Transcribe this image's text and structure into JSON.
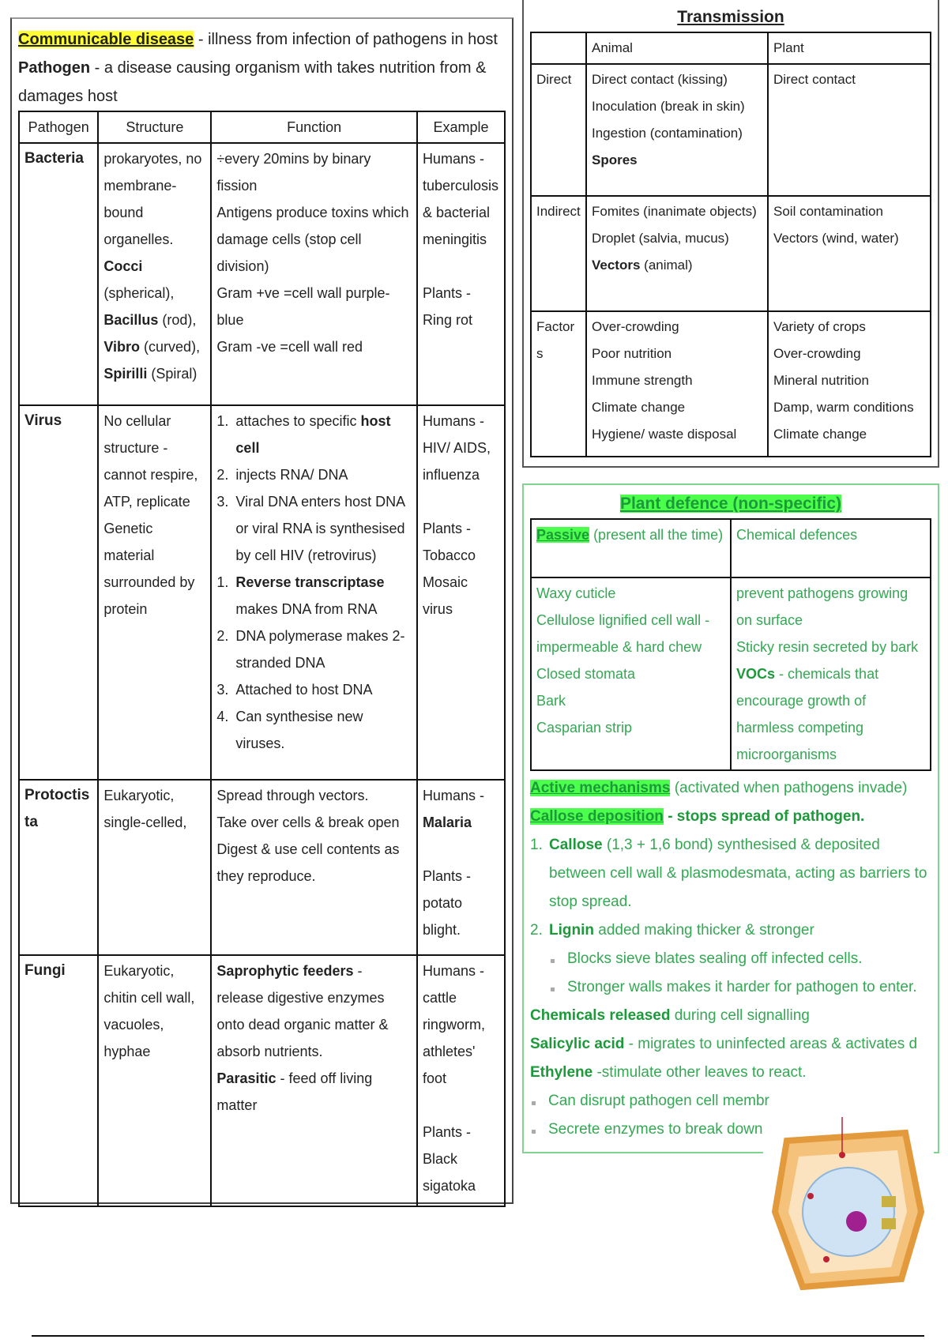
{
  "left": {
    "definitions": [
      [
        {
          "hl": "Communicable disease"
        },
        " - illness from infection of pathogens in host"
      ],
      [
        {
          "b": "Pathogen"
        },
        " - a disease causing organism with takes nutrition from & damages host"
      ]
    ],
    "table": {
      "header": [
        "Pathogen",
        "Structure",
        "Function",
        "Example"
      ],
      "rows": [
        {
          "name": "Bacteria",
          "structure": [
            "prokaryotes, no membrane-bound organelles.",
            [
              {
                "b": "Cocci"
              },
              " (spherical),"
            ],
            [
              {
                "b": "Bacillus"
              },
              " (rod),"
            ],
            [
              {
                "b": "Vibro"
              },
              " (curved),"
            ],
            [
              {
                "b": "Spirilli"
              },
              " (Spiral)"
            ]
          ],
          "function": [
            "÷every 20mins by binary fission",
            "Antigens produce toxins which damage cells (stop cell division)",
            "Gram +ve =cell wall purple-blue",
            "Gram -ve =cell wall red"
          ],
          "example": [
            "Humans - tuberculosis & bacterial meningitis",
            "Plants - Ring rot"
          ]
        },
        {
          "name": "Virus",
          "structure": [
            "No cellular structure - cannot respire, ATP, replicate",
            "Genetic material surrounded by protein"
          ],
          "function": [
            {
              "n": "1.",
              "t": [
                "attaches to specific ",
                {
                  "b": "host cell"
                }
              ]
            },
            {
              "n": "2.",
              "t": "injects RNA/ DNA"
            },
            {
              "n": "3.",
              "t": "Viral DNA enters host DNA or viral RNA is synthesised by cell HIV (retrovirus)"
            },
            {
              "n": "1.",
              "t": [
                {
                  "b": "Reverse transcriptase"
                },
                " makes DNA from RNA"
              ]
            },
            {
              "n": "2.",
              "t": "DNA polymerase makes 2-stranded DNA"
            },
            {
              "n": "3.",
              "t": "Attached to host DNA"
            },
            {
              "n": "4.",
              "t": "Can synthesise new viruses."
            }
          ],
          "example": [
            "Humans - HIV/ AIDS, influenza",
            "Plants - Tobacco Mosaic virus"
          ]
        },
        {
          "name": "Protoctista",
          "structure": [
            "Eukaryotic, single-celled,"
          ],
          "function": [
            "Spread through vectors.",
            "Take over cells & break open",
            "Digest & use cell contents as they reproduce."
          ],
          "example": [
            [
              "Humans - ",
              {
                "b": "Malaria"
              }
            ],
            "Plants - potato blight."
          ]
        },
        {
          "name": "Fungi",
          "structure": [
            "Eukaryotic, chitin cell wall, vacuoles, hyphae"
          ],
          "function": [
            [
              {
                "b": "Saprophytic feeders"
              },
              " - release digestive enzymes onto dead organic matter & absorb nutrients."
            ],
            [
              {
                "b": "Parasitic"
              },
              " - feed off living matter"
            ]
          ],
          "example": [
            "Humans - cattle ringworm, athletes' foot",
            "Plants - Black sigatoka"
          ]
        }
      ]
    }
  },
  "transmission": {
    "title": "Transmission",
    "header": [
      "Animal",
      "Plant"
    ],
    "rows": [
      {
        "label": "Direct",
        "animal": [
          "Direct contact (kissing)",
          "Inoculation (break in skin)",
          "Ingestion (contamination)",
          [
            {
              "b": "Spores"
            }
          ]
        ],
        "plant": [
          "Direct contact"
        ]
      },
      {
        "label": "Indirect",
        "animal": [
          "Fomites (inanimate objects)",
          "Droplet (salvia, mucus)",
          [
            {
              "b": "Vectors"
            },
            " (animal)"
          ]
        ],
        "plant": [
          "Soil contamination",
          "Vectors (wind, water)"
        ]
      },
      {
        "label": "Factors",
        "animal": [
          "Over-crowding",
          "Poor nutrition",
          "Immune strength",
          "Climate change",
          "Hygiene/ waste disposal"
        ],
        "plant": [
          "Variety of crops",
          "Over-crowding",
          "Mineral nutrition",
          "Damp, warm conditions",
          "Climate change"
        ]
      }
    ]
  },
  "plant_defence": {
    "title": "Plant defence (non-specific)",
    "table": {
      "header": [
        [
          {
            "hl": "Passive"
          },
          " (present all the time)"
        ],
        "Chemical defences"
      ],
      "passive": [
        "Waxy cuticle",
        "Cellulose lignified cell wall - impermeable & hard chew",
        "Closed stomata",
        "Bark",
        "Casparian strip"
      ],
      "chemical": [
        "prevent pathogens growing on surface",
        "Sticky resin secreted by bark",
        [
          {
            "b": "VOCs"
          },
          " - chemicals that encourage growth of harmless competing microorganisms"
        ]
      ]
    },
    "notes": [
      [
        {
          "hl": "Active mechanisms"
        },
        " (activated when pathogens invade)"
      ],
      [
        {
          "hl": "Callose deposition"
        },
        {
          "b": " - stops spread of pathogen."
        }
      ],
      {
        "n": "1.",
        "t": [
          {
            "b": "Callose"
          },
          " (1,3 + 1,6 bond) synthesised & deposited between cell wall & plasmodesmata, acting as barriers to stop spread."
        ]
      },
      {
        "n": "2.",
        "t": [
          {
            "b": "Lignin"
          },
          " added making thicker & stronger"
        ]
      },
      {
        "sub": "Blocks sieve blates sealing off infected cells."
      },
      {
        "sub": "Stronger walls makes it harder for pathogen to enter."
      },
      [
        {
          "b": "Chemicals released"
        },
        " during cell signalling"
      ],
      [
        {
          "b": "Salicylic acid"
        },
        " - migrates to uninfected areas & activates d"
      ],
      [
        {
          "b": "Ethylene"
        },
        " -stimulate other leaves to react."
      ],
      {
        "bullet": "Can disrupt pathogen cell membr"
      },
      {
        "bullet": "Secrete enzymes to break down"
      }
    ]
  }
}
